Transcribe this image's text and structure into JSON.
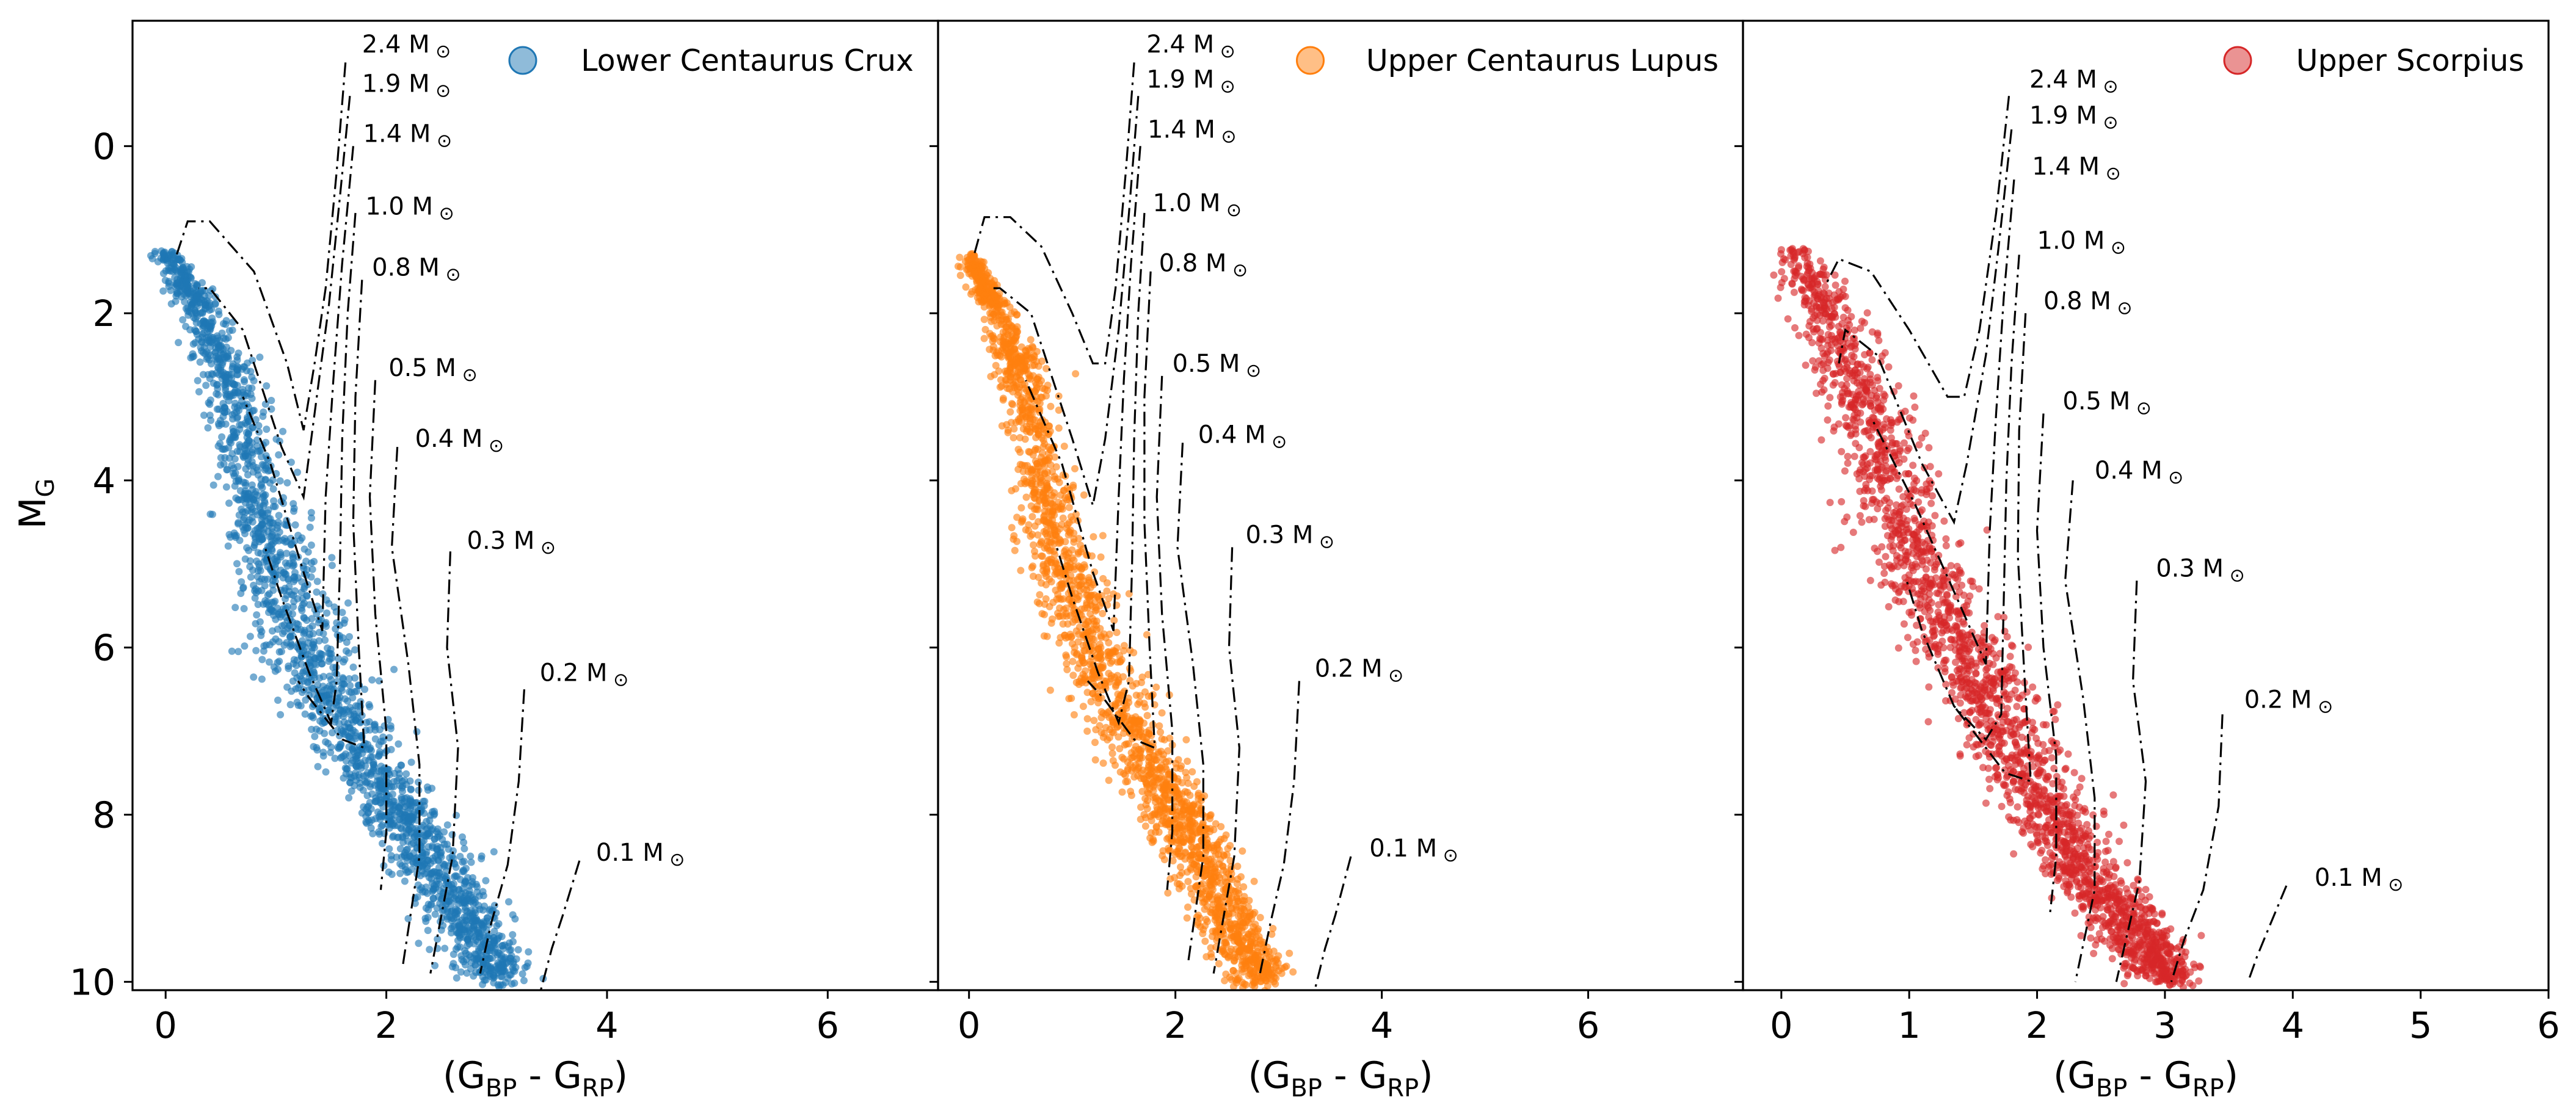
{
  "figure": {
    "y_axis_label": "M",
    "y_axis_label_sub": "G",
    "x_axis_label_parts": [
      "(G",
      "BP",
      " - G",
      "RP",
      ")"
    ]
  },
  "chart_data": [
    {
      "type": "scatter",
      "panel": "left",
      "legend": "Lower Centaurus Crux",
      "legend_placement": "top-right",
      "color": "#1f77b4",
      "xlim": [
        -0.3,
        7.0
      ],
      "ylim": [
        10.1,
        -1.5
      ],
      "y_inverted": true,
      "xticks": [
        0,
        2,
        4,
        6
      ],
      "yticks": [
        0,
        2,
        4,
        6,
        8,
        10
      ],
      "grid": false,
      "sequence": [
        [
          0.0,
          1.25
        ],
        [
          0.3,
          1.9
        ],
        [
          0.6,
          2.9
        ],
        [
          0.85,
          4.3
        ],
        [
          1.1,
          5.4
        ],
        [
          1.45,
          6.5
        ],
        [
          1.9,
          7.5
        ],
        [
          2.3,
          8.3
        ],
        [
          2.7,
          9.2
        ],
        [
          3.05,
          10.0
        ]
      ],
      "sequence_width": [
        0.12,
        0.2,
        0.3,
        0.35,
        0.45,
        0.45,
        0.4,
        0.4,
        0.4,
        0.35
      ],
      "isochrone_mass_labels": [
        "2.4 M",
        "1.9 M",
        "1.4 M",
        "1.0 M",
        "0.8 M",
        "0.5 M",
        "0.4 M",
        "0.3 M",
        "0.2 M",
        "0.1 M"
      ],
      "mass_label_positions": [
        [
          1.78,
          -1.12
        ],
        [
          1.78,
          -0.65
        ],
        [
          1.79,
          -0.05
        ],
        [
          1.81,
          0.82
        ],
        [
          1.87,
          1.55
        ],
        [
          2.02,
          2.75
        ],
        [
          2.26,
          3.6
        ],
        [
          2.73,
          4.82
        ],
        [
          3.39,
          6.4
        ],
        [
          3.9,
          8.55
        ]
      ],
      "isochrones": [
        [
          [
            1.63,
            -1.0
          ],
          [
            1.55,
            0.3
          ],
          [
            1.45,
            1.7
          ],
          [
            1.35,
            2.6
          ],
          [
            1.25,
            3.4
          ],
          [
            1.1,
            2.6
          ],
          [
            0.8,
            1.5
          ],
          [
            0.4,
            0.9
          ],
          [
            0.2,
            0.9
          ],
          [
            0.1,
            1.3
          ]
        ],
        [
          [
            1.67,
            -0.6
          ],
          [
            1.58,
            0.6
          ],
          [
            1.48,
            1.9
          ],
          [
            1.35,
            3.2
          ],
          [
            1.25,
            4.2
          ],
          [
            1.05,
            3.6
          ],
          [
            0.7,
            2.2
          ],
          [
            0.4,
            1.7
          ],
          [
            0.3,
            1.7
          ]
        ],
        [
          [
            1.7,
            0.0
          ],
          [
            1.6,
            1.4
          ],
          [
            1.52,
            2.8
          ],
          [
            1.45,
            4.2
          ],
          [
            1.42,
            5.8
          ],
          [
            1.25,
            5.1
          ],
          [
            0.95,
            3.8
          ],
          [
            0.7,
            3.0
          ]
        ],
        [
          [
            1.72,
            0.8
          ],
          [
            1.65,
            2.0
          ],
          [
            1.6,
            3.5
          ],
          [
            1.58,
            5.0
          ],
          [
            1.55,
            6.4
          ],
          [
            1.5,
            6.9
          ],
          [
            1.3,
            6.3
          ],
          [
            1.05,
            5.4
          ],
          [
            0.9,
            4.8
          ]
        ],
        [
          [
            1.78,
            1.6
          ],
          [
            1.72,
            3.0
          ],
          [
            1.7,
            4.5
          ],
          [
            1.75,
            6.0
          ],
          [
            1.8,
            7.2
          ],
          [
            1.6,
            7.1
          ],
          [
            1.3,
            6.6
          ],
          [
            1.2,
            6.4
          ]
        ],
        [
          [
            1.9,
            2.8
          ],
          [
            1.85,
            4.2
          ],
          [
            1.9,
            5.6
          ],
          [
            2.0,
            7.0
          ],
          [
            2.0,
            8.2
          ],
          [
            1.95,
            8.9
          ]
        ],
        [
          [
            2.1,
            3.6
          ],
          [
            2.05,
            4.8
          ],
          [
            2.2,
            6.2
          ],
          [
            2.3,
            7.4
          ],
          [
            2.3,
            8.5
          ],
          [
            2.15,
            9.8
          ]
        ],
        [
          [
            2.58,
            4.85
          ],
          [
            2.55,
            6.0
          ],
          [
            2.65,
            7.2
          ],
          [
            2.6,
            8.5
          ],
          [
            2.4,
            9.9
          ]
        ],
        [
          [
            3.25,
            6.5
          ],
          [
            3.2,
            7.6
          ],
          [
            3.1,
            8.6
          ],
          [
            2.95,
            9.3
          ],
          [
            2.85,
            9.9
          ]
        ],
        [
          [
            3.75,
            8.55
          ],
          [
            3.6,
            9.2
          ],
          [
            3.5,
            9.6
          ],
          [
            3.4,
            10.1
          ]
        ]
      ]
    },
    {
      "type": "scatter",
      "panel": "middle",
      "legend": "Upper Centaurus Lupus",
      "legend_placement": "top-right",
      "color": "#ff7f0e",
      "xlim": [
        -0.3,
        7.5
      ],
      "ylim": [
        10.1,
        -1.5
      ],
      "y_inverted": true,
      "xticks": [
        0,
        2,
        4,
        6
      ],
      "yticks": [
        0,
        2,
        4,
        6,
        8,
        10
      ],
      "grid": false,
      "sequence": [
        [
          0.0,
          1.3
        ],
        [
          0.25,
          1.9
        ],
        [
          0.55,
          2.9
        ],
        [
          0.75,
          4.2
        ],
        [
          1.0,
          5.3
        ],
        [
          1.35,
          6.5
        ],
        [
          1.85,
          7.6
        ],
        [
          2.2,
          8.4
        ],
        [
          2.55,
          9.3
        ],
        [
          2.85,
          10.0
        ]
      ],
      "sequence_width": [
        0.1,
        0.18,
        0.28,
        0.32,
        0.4,
        0.42,
        0.4,
        0.38,
        0.38,
        0.35
      ],
      "isochrone_mass_labels": [
        "2.4 M",
        "1.9 M",
        "1.4 M",
        "1.0 M",
        "0.8 M",
        "0.5 M",
        "0.4 M",
        "0.3 M",
        "0.2 M",
        "0.1 M"
      ],
      "mass_label_positions": [
        [
          1.72,
          -1.12
        ],
        [
          1.72,
          -0.7
        ],
        [
          1.73,
          -0.1
        ],
        [
          1.78,
          0.78
        ],
        [
          1.84,
          1.5
        ],
        [
          1.97,
          2.7
        ],
        [
          2.22,
          3.55
        ],
        [
          2.68,
          4.75
        ],
        [
          3.35,
          6.35
        ],
        [
          3.88,
          8.5
        ]
      ],
      "isochrones": [
        [
          [
            1.6,
            -1.0
          ],
          [
            1.52,
            0.3
          ],
          [
            1.42,
            1.7
          ],
          [
            1.32,
            2.6
          ],
          [
            1.2,
            2.6
          ],
          [
            1.0,
            2.0
          ],
          [
            0.7,
            1.2
          ],
          [
            0.4,
            0.85
          ],
          [
            0.15,
            0.85
          ],
          [
            0.05,
            1.3
          ]
        ],
        [
          [
            1.64,
            -0.6
          ],
          [
            1.55,
            0.8
          ],
          [
            1.45,
            2.2
          ],
          [
            1.32,
            3.5
          ],
          [
            1.2,
            4.3
          ],
          [
            1.0,
            3.5
          ],
          [
            0.6,
            2.0
          ],
          [
            0.3,
            1.7
          ],
          [
            0.2,
            1.7
          ]
        ],
        [
          [
            1.66,
            0.0
          ],
          [
            1.57,
            1.4
          ],
          [
            1.5,
            2.8
          ],
          [
            1.45,
            4.2
          ],
          [
            1.4,
            5.8
          ],
          [
            1.2,
            5.1
          ],
          [
            0.9,
            3.8
          ],
          [
            0.55,
            2.8
          ]
        ],
        [
          [
            1.7,
            0.8
          ],
          [
            1.64,
            2.0
          ],
          [
            1.6,
            3.5
          ],
          [
            1.58,
            5.0
          ],
          [
            1.55,
            6.4
          ],
          [
            1.45,
            6.9
          ],
          [
            1.25,
            6.3
          ],
          [
            1.0,
            5.4
          ],
          [
            0.85,
            4.8
          ]
        ],
        [
          [
            1.76,
            1.5
          ],
          [
            1.7,
            3.0
          ],
          [
            1.7,
            4.5
          ],
          [
            1.75,
            6.0
          ],
          [
            1.8,
            7.2
          ],
          [
            1.6,
            7.1
          ],
          [
            1.3,
            6.6
          ],
          [
            1.15,
            6.4
          ]
        ],
        [
          [
            1.87,
            2.75
          ],
          [
            1.82,
            4.2
          ],
          [
            1.87,
            5.6
          ],
          [
            1.97,
            7.0
          ],
          [
            1.97,
            8.2
          ],
          [
            1.92,
            8.9
          ]
        ],
        [
          [
            2.07,
            3.55
          ],
          [
            2.02,
            4.8
          ],
          [
            2.17,
            6.2
          ],
          [
            2.27,
            7.4
          ],
          [
            2.27,
            8.5
          ],
          [
            2.12,
            9.8
          ]
        ],
        [
          [
            2.55,
            4.8
          ],
          [
            2.52,
            6.0
          ],
          [
            2.62,
            7.2
          ],
          [
            2.57,
            8.5
          ],
          [
            2.37,
            9.9
          ]
        ],
        [
          [
            3.2,
            6.4
          ],
          [
            3.15,
            7.6
          ],
          [
            3.05,
            8.6
          ],
          [
            2.92,
            9.3
          ],
          [
            2.82,
            9.9
          ]
        ],
        [
          [
            3.7,
            8.5
          ],
          [
            3.55,
            9.2
          ],
          [
            3.45,
            9.6
          ],
          [
            3.35,
            10.1
          ]
        ]
      ]
    },
    {
      "type": "scatter",
      "panel": "right",
      "legend": "Upper Scorpius",
      "legend_placement": "top-right",
      "color": "#d62728",
      "xlim": [
        -0.3,
        6.0
      ],
      "ylim": [
        10.1,
        -1.5
      ],
      "y_inverted": true,
      "xticks": [
        0,
        1,
        2,
        3,
        4,
        5,
        6
      ],
      "yticks": [
        0,
        2,
        4,
        6,
        8,
        10
      ],
      "grid": false,
      "sequence": [
        [
          0.05,
          1.2
        ],
        [
          0.4,
          2.1
        ],
        [
          0.7,
          3.3
        ],
        [
          0.95,
          4.5
        ],
        [
          1.25,
          5.6
        ],
        [
          1.6,
          6.6
        ],
        [
          2.0,
          7.7
        ],
        [
          2.35,
          8.6
        ],
        [
          2.75,
          9.4
        ],
        [
          3.05,
          10.0
        ]
      ],
      "sequence_width": [
        0.15,
        0.3,
        0.35,
        0.38,
        0.4,
        0.42,
        0.4,
        0.38,
        0.35,
        0.3
      ],
      "isochrone_mass_labels": [
        "2.4 M",
        "1.9 M",
        "1.4 M",
        "1.0 M",
        "0.8 M",
        "0.5 M",
        "0.4 M",
        "0.3 M",
        "0.2 M",
        "0.1 M"
      ],
      "mass_label_positions": [
        [
          1.94,
          -0.7
        ],
        [
          1.94,
          -0.27
        ],
        [
          1.96,
          0.34
        ],
        [
          2.0,
          1.23
        ],
        [
          2.05,
          1.95
        ],
        [
          2.2,
          3.15
        ],
        [
          2.45,
          3.98
        ],
        [
          2.93,
          5.15
        ],
        [
          3.62,
          6.72
        ],
        [
          4.17,
          8.85
        ]
      ],
      "isochrones": [
        [
          [
            1.78,
            -0.6
          ],
          [
            1.68,
            0.8
          ],
          [
            1.55,
            2.2
          ],
          [
            1.43,
            3.0
          ],
          [
            1.3,
            3.0
          ],
          [
            1.0,
            2.2
          ],
          [
            0.7,
            1.5
          ],
          [
            0.45,
            1.35
          ],
          [
            0.35,
            1.65
          ]
        ],
        [
          [
            1.8,
            -0.2
          ],
          [
            1.7,
            1.2
          ],
          [
            1.6,
            2.5
          ],
          [
            1.45,
            3.8
          ],
          [
            1.35,
            4.5
          ],
          [
            1.1,
            3.8
          ],
          [
            0.75,
            2.5
          ],
          [
            0.5,
            2.2
          ],
          [
            0.45,
            2.6
          ]
        ],
        [
          [
            1.82,
            0.4
          ],
          [
            1.74,
            1.8
          ],
          [
            1.68,
            3.2
          ],
          [
            1.63,
            4.6
          ],
          [
            1.6,
            6.2
          ],
          [
            1.4,
            5.5
          ],
          [
            1.05,
            4.3
          ],
          [
            0.72,
            3.3
          ]
        ],
        [
          [
            1.86,
            1.3
          ],
          [
            1.8,
            2.6
          ],
          [
            1.76,
            4.0
          ],
          [
            1.74,
            5.4
          ],
          [
            1.72,
            6.8
          ],
          [
            1.6,
            7.1
          ],
          [
            1.35,
            6.7
          ],
          [
            1.1,
            5.8
          ],
          [
            0.98,
            5.2
          ]
        ],
        [
          [
            1.91,
            2.0
          ],
          [
            1.86,
            3.4
          ],
          [
            1.85,
            4.9
          ],
          [
            1.9,
            6.3
          ],
          [
            1.95,
            7.6
          ],
          [
            1.75,
            7.5
          ],
          [
            1.45,
            6.9
          ],
          [
            1.35,
            6.7
          ]
        ],
        [
          [
            2.05,
            3.2
          ],
          [
            2.0,
            4.6
          ],
          [
            2.05,
            6.0
          ],
          [
            2.15,
            7.3
          ],
          [
            2.15,
            8.5
          ],
          [
            2.1,
            9.2
          ]
        ],
        [
          [
            2.28,
            4.0
          ],
          [
            2.22,
            5.2
          ],
          [
            2.36,
            6.6
          ],
          [
            2.45,
            7.8
          ],
          [
            2.45,
            8.9
          ],
          [
            2.3,
            10.0
          ]
        ],
        [
          [
            2.78,
            5.2
          ],
          [
            2.75,
            6.4
          ],
          [
            2.85,
            7.6
          ],
          [
            2.8,
            8.8
          ],
          [
            2.62,
            10.0
          ]
        ],
        [
          [
            3.45,
            6.8
          ],
          [
            3.42,
            7.9
          ],
          [
            3.3,
            8.9
          ],
          [
            3.15,
            9.5
          ],
          [
            3.05,
            10.0
          ]
        ],
        [
          [
            3.95,
            8.85
          ],
          [
            3.8,
            9.4
          ],
          [
            3.72,
            9.7
          ],
          [
            3.65,
            10.0
          ]
        ]
      ]
    }
  ]
}
